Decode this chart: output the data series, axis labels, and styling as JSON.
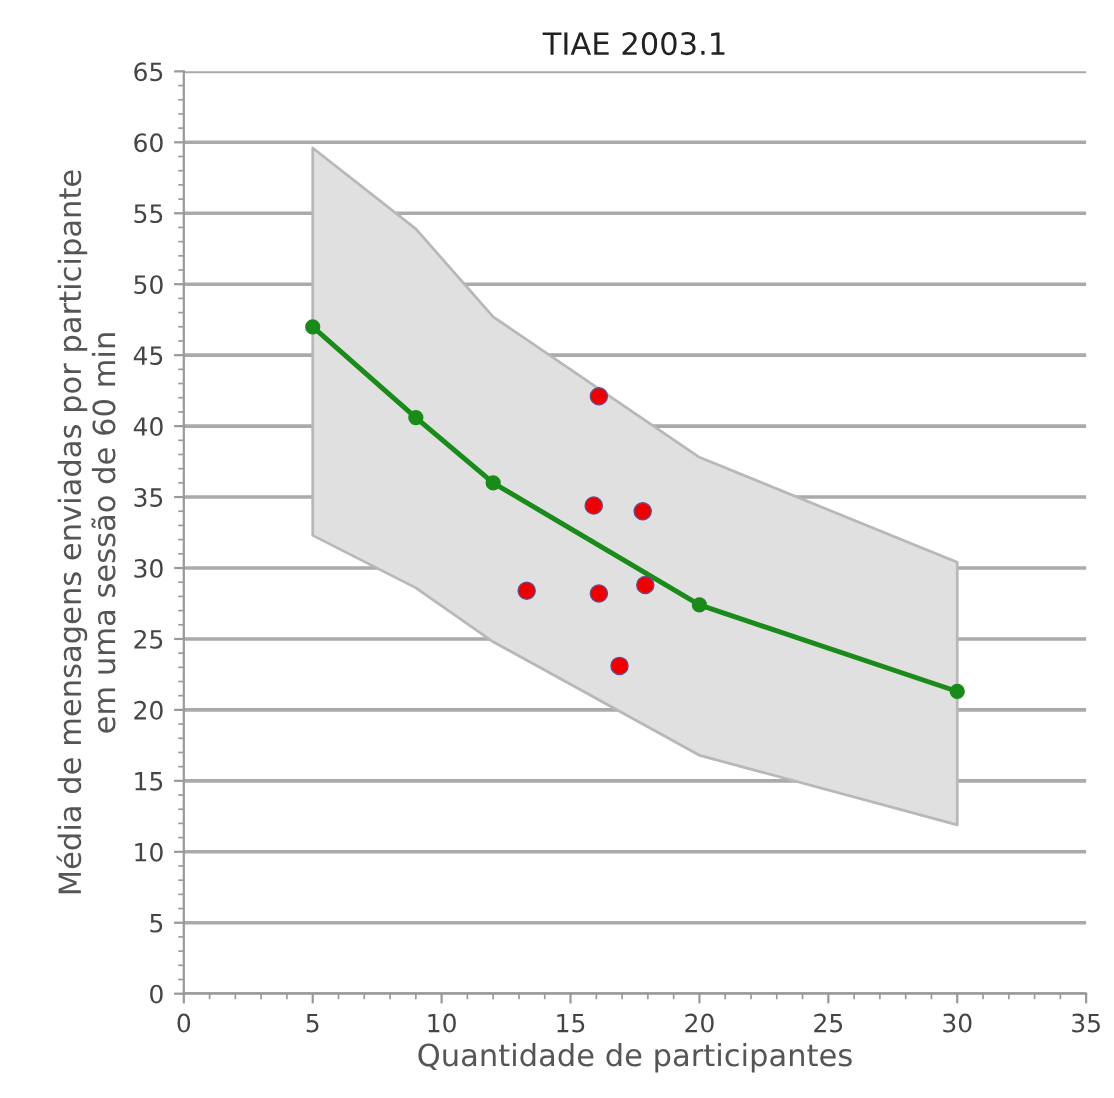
{
  "chart_data": {
    "type": "line",
    "title": "TIAE 2003.1",
    "xlabel": "Quantidade de participantes",
    "ylabel": "Média de mensagens enviadas por participante\nem uma sessão de 60 min",
    "xlim": [
      0,
      35
    ],
    "xticks": [
      0,
      5,
      10,
      15,
      20,
      25,
      30,
      35
    ],
    "ylim": [
      0,
      65
    ],
    "yticks": [
      0,
      5,
      10,
      15,
      20,
      25,
      30,
      35,
      40,
      45,
      50,
      55,
      60,
      65
    ],
    "grid": "y",
    "series": [
      {
        "color": "#1a8a1a",
        "marker": "circle",
        "x": [
          5,
          9,
          12,
          20,
          30
        ],
        "values": [
          47,
          40.6,
          36,
          27.4,
          21.3
        ],
        "lower": [
          32.3,
          28.6,
          24.8,
          16.8,
          11.9
        ],
        "upper": [
          59.6,
          53.9,
          47.7,
          37.8,
          30.4
        ]
      },
      {
        "type": "scatter",
        "color": "#ee0000",
        "marker": "circle",
        "x": [
          16.1,
          15.9,
          17.8,
          13.3,
          16.1,
          17.9,
          16.9
        ],
        "values": [
          42.1,
          34.4,
          34.0,
          28.4,
          28.2,
          28.8,
          23.1
        ]
      }
    ]
  }
}
